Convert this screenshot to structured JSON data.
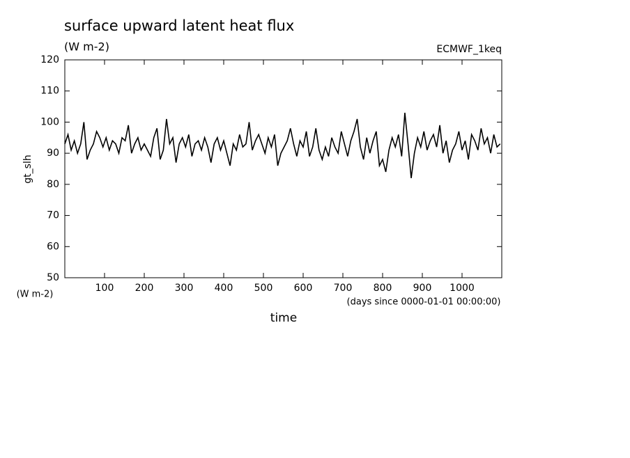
{
  "chart_data": {
    "type": "line",
    "title": "surface upward latent heat flux",
    "subtitle": "(W m-2)",
    "annotation": "ECMWF_1keq",
    "ylabel": "gt_slh",
    "yunit_label": "(W m-2)",
    "xunit_label": "(days since 0000-01-01 00:00:00)",
    "xlabel": "time",
    "color": "#000000",
    "xlim": [
      0,
      1100
    ],
    "ylim": [
      50,
      120
    ],
    "xticks": [
      100,
      200,
      300,
      400,
      500,
      600,
      700,
      800,
      900,
      1000
    ],
    "yticks": [
      50,
      60,
      70,
      80,
      90,
      100,
      110,
      120
    ],
    "x": [
      0,
      8,
      16,
      24,
      32,
      40,
      48,
      56,
      64,
      72,
      80,
      88,
      96,
      104,
      112,
      120,
      128,
      136,
      144,
      152,
      160,
      168,
      176,
      184,
      192,
      200,
      208,
      216,
      224,
      232,
      240,
      248,
      256,
      264,
      272,
      280,
      288,
      296,
      304,
      312,
      320,
      328,
      336,
      344,
      352,
      360,
      368,
      376,
      384,
      392,
      400,
      408,
      416,
      424,
      432,
      440,
      448,
      456,
      464,
      472,
      480,
      488,
      496,
      504,
      512,
      520,
      528,
      536,
      544,
      552,
      560,
      568,
      576,
      584,
      592,
      600,
      608,
      616,
      624,
      632,
      640,
      648,
      656,
      664,
      672,
      680,
      688,
      696,
      704,
      712,
      720,
      728,
      736,
      744,
      752,
      760,
      768,
      776,
      784,
      792,
      800,
      808,
      816,
      824,
      832,
      840,
      848,
      856,
      864,
      872,
      880,
      888,
      896,
      904,
      912,
      920,
      928,
      936,
      944,
      952,
      960,
      968,
      976,
      984,
      992,
      1000,
      1008,
      1016,
      1024,
      1032,
      1040,
      1048,
      1056,
      1064,
      1072,
      1080,
      1088,
      1096
    ],
    "values": [
      93,
      96,
      91,
      94,
      90,
      93,
      100,
      88,
      91,
      93,
      97,
      95,
      92,
      95,
      91,
      94,
      93,
      90,
      95,
      94,
      99,
      90,
      93,
      95,
      91,
      93,
      91,
      89,
      95,
      98,
      88,
      91,
      101,
      93,
      95,
      87,
      93,
      95,
      92,
      96,
      89,
      93,
      94,
      91,
      95,
      92,
      87,
      93,
      95,
      91,
      94,
      90,
      86,
      93,
      91,
      96,
      92,
      93,
      100,
      91,
      94,
      96,
      93,
      90,
      95,
      92,
      96,
      86,
      90,
      92,
      94,
      98,
      93,
      89,
      94,
      92,
      97,
      89,
      92,
      98,
      91,
      88,
      92,
      89,
      95,
      92,
      90,
      97,
      93,
      89,
      94,
      97,
      101,
      92,
      88,
      95,
      90,
      94,
      97,
      86,
      88,
      84,
      91,
      95,
      92,
      96,
      89,
      103,
      93,
      82,
      90,
      95,
      92,
      97,
      91,
      94,
      96,
      92,
      99,
      90,
      94,
      87,
      91,
      93,
      97,
      91,
      94,
      88,
      96,
      94,
      91,
      98,
      93,
      95,
      90,
      96,
      92,
      93
    ]
  }
}
